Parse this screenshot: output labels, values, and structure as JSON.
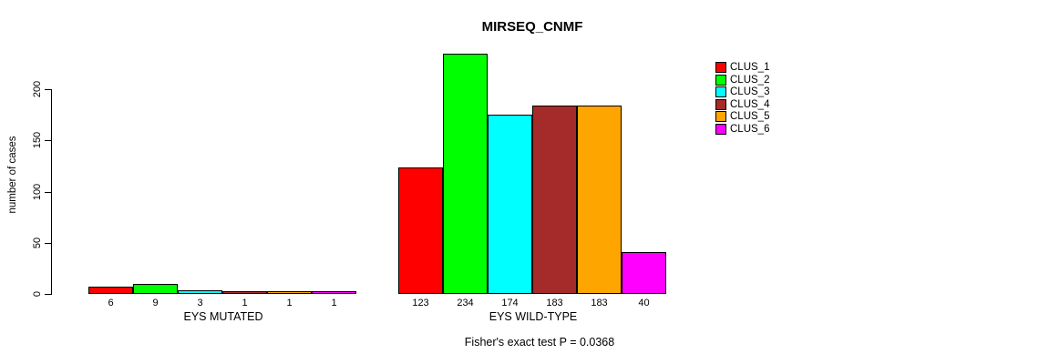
{
  "chart_data": {
    "type": "bar",
    "title": "MIRSEQ_CNMF",
    "ylabel": "number of cases",
    "yticks": [
      0,
      50,
      100,
      150,
      200
    ],
    "ylim": [
      0,
      200
    ],
    "grid": false,
    "legend_position": "top-right",
    "legend": [
      "CLUS_1",
      "CLUS_2",
      "CLUS_3",
      "CLUS_4",
      "CLUS_5",
      "CLUS_6"
    ],
    "series_colors": [
      "#FF0000",
      "#00FF00",
      "#00FFFF",
      "#A52A2A",
      "#FFA500",
      "#FF00FF"
    ],
    "groups": [
      {
        "label": "EYS MUTATED",
        "values": [
          6,
          9,
          3,
          1,
          1,
          1
        ]
      },
      {
        "label": "EYS WILD-TYPE",
        "values": [
          123,
          234,
          174,
          183,
          183,
          40
        ]
      }
    ],
    "annotation": "Fisher's exact test P = 0.0368"
  }
}
